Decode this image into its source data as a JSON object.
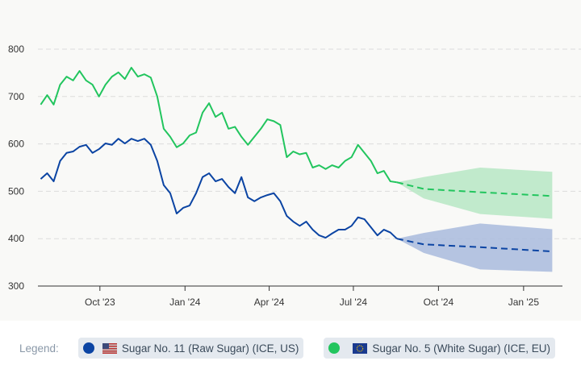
{
  "chart_data": {
    "type": "line",
    "ylim": [
      300,
      800
    ],
    "yticks": [
      "300",
      "400",
      "500",
      "600",
      "700",
      "800"
    ],
    "xlim": [
      "2023-07-26",
      "2025-02-12"
    ],
    "xticks": [
      {
        "date": "2023-10-01",
        "label": "Oct '23"
      },
      {
        "date": "2024-01-01",
        "label": "Jan '24"
      },
      {
        "date": "2024-04-01",
        "label": "Apr '24"
      },
      {
        "date": "2024-07-01",
        "label": "Jul '24"
      },
      {
        "date": "2024-10-01",
        "label": "Oct '24"
      },
      {
        "date": "2025-01-01",
        "label": "Jan '25"
      }
    ],
    "grid": true,
    "legend_position": "bottom",
    "x": [
      "2023-07-29",
      "2023-08-05",
      "2023-08-12",
      "2023-08-19",
      "2023-08-26",
      "2023-09-02",
      "2023-09-09",
      "2023-09-16",
      "2023-09-23",
      "2023-09-30",
      "2023-10-07",
      "2023-10-14",
      "2023-10-21",
      "2023-10-28",
      "2023-11-04",
      "2023-11-11",
      "2023-11-18",
      "2023-11-25",
      "2023-12-02",
      "2023-12-09",
      "2023-12-16",
      "2023-12-23",
      "2023-12-30",
      "2024-01-06",
      "2024-01-13",
      "2024-01-20",
      "2024-01-27",
      "2024-02-03",
      "2024-02-10",
      "2024-02-17",
      "2024-02-24",
      "2024-03-02",
      "2024-03-09",
      "2024-03-16",
      "2024-03-23",
      "2024-03-30",
      "2024-04-06",
      "2024-04-13",
      "2024-04-20",
      "2024-04-27",
      "2024-05-04",
      "2024-05-11",
      "2024-05-18",
      "2024-05-25",
      "2024-06-01",
      "2024-06-08",
      "2024-06-15",
      "2024-06-22",
      "2024-06-29",
      "2024-07-06",
      "2024-07-13",
      "2024-07-20",
      "2024-07-27",
      "2024-08-03",
      "2024-08-10",
      "2024-08-17"
    ],
    "forecast_x": [
      "2024-08-17",
      "2024-09-15",
      "2024-11-15",
      "2025-02-01"
    ],
    "series": [
      {
        "name": "Sugar No. 11 (Raw Sugar) (ICE, US)",
        "color": "#0b44a3",
        "band_color": "#a9bbdd",
        "values": [
          526,
          538,
          521,
          564,
          581,
          584,
          594,
          598,
          581,
          589,
          601,
          598,
          611,
          601,
          611,
          606,
          611,
          598,
          564,
          513,
          496,
          453,
          465,
          470,
          496,
          530,
          538,
          521,
          526,
          509,
          496,
          530,
          487,
          479,
          487,
          492,
          496,
          479,
          448,
          436,
          427,
          436,
          419,
          407,
          402,
          411,
          419,
          419,
          427,
          445,
          441,
          424,
          407,
          419,
          413,
          400
        ],
        "forecast": [
          400,
          388,
          382,
          373
        ],
        "forecast_upper": [
          400,
          412,
          432,
          420
        ],
        "forecast_lower": [
          400,
          370,
          335,
          330
        ]
      },
      {
        "name": "Sugar No. 5 (White Sugar) (ICE, EU)",
        "color": "#22c55e",
        "band_color": "#b7e8c4",
        "values": [
          683,
          703,
          683,
          725,
          742,
          734,
          754,
          734,
          725,
          700,
          725,
          742,
          751,
          737,
          761,
          742,
          747,
          740,
          700,
          632,
          615,
          593,
          601,
          618,
          624,
          666,
          686,
          657,
          666,
          632,
          636,
          615,
          598,
          615,
          632,
          652,
          648,
          640,
          572,
          584,
          578,
          581,
          550,
          555,
          547,
          555,
          550,
          564,
          572,
          598,
          581,
          564,
          538,
          543,
          521,
          519
        ],
        "forecast": [
          519,
          505,
          498,
          490
        ],
        "forecast_upper": [
          519,
          530,
          550,
          541
        ],
        "forecast_lower": [
          519,
          485,
          452,
          442
        ]
      }
    ]
  },
  "legend": {
    "label": "Legend:",
    "items": [
      {
        "label": "Sugar No. 11 (Raw Sugar) (ICE, US)",
        "color": "#0b44a3",
        "flag": "us-flag-icon"
      },
      {
        "label": "Sugar No. 5 (White Sugar) (ICE, EU)",
        "color": "#22c55e",
        "flag": "eu-flag-icon"
      }
    ]
  }
}
